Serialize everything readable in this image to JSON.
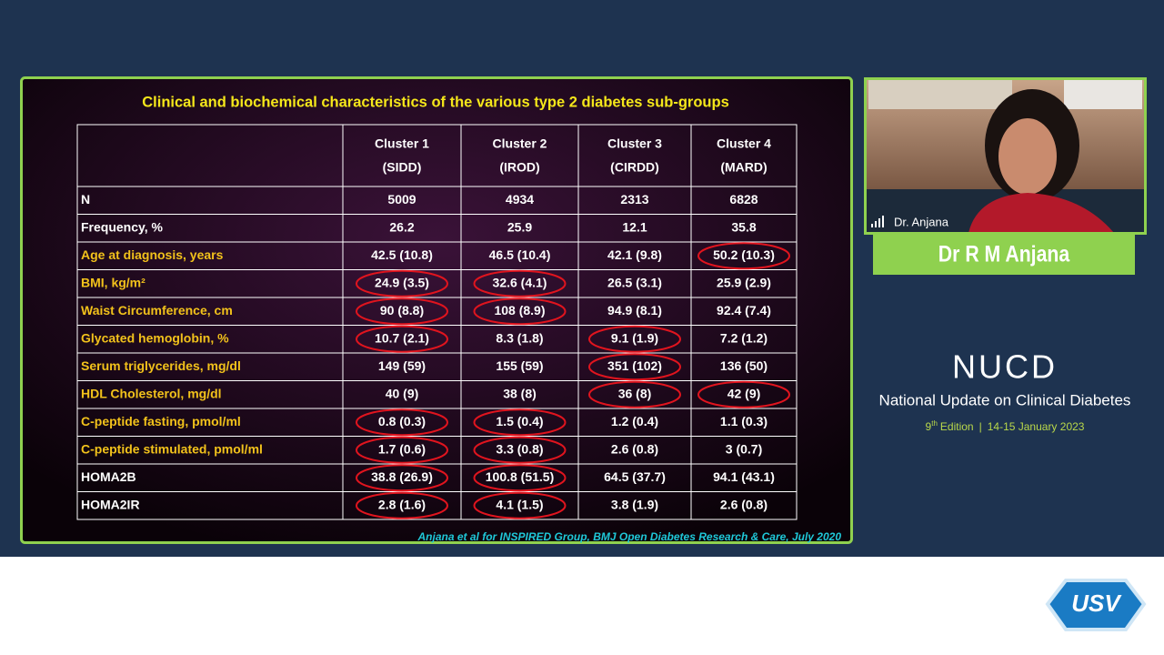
{
  "slide": {
    "title": "Clinical and biochemical characteristics of the various type 2 diabetes sub-groups",
    "table": {
      "columns": [
        {
          "name": "Cluster 1",
          "abbr": "(SIDD)"
        },
        {
          "name": "Cluster 2",
          "abbr": "(IROD)"
        },
        {
          "name": "Cluster 3",
          "abbr": "(CIRDD)"
        },
        {
          "name": "Cluster 4",
          "abbr": "(MARD)"
        }
      ],
      "rows": [
        {
          "label": "N",
          "color": "#ffffff",
          "values": [
            "5009",
            "4934",
            "2313",
            "6828"
          ]
        },
        {
          "label": "Frequency, %",
          "color": "#ffffff",
          "values": [
            "26.2",
            "25.9",
            "12.1",
            "35.8"
          ]
        },
        {
          "label": "Age at diagnosis, years",
          "color": "#f2c21b",
          "values": [
            "42.5 (10.8)",
            "46.5 (10.4)",
            "42.1 (9.8)",
            "50.2 (10.3)"
          ]
        },
        {
          "label": "BMI, kg/m²",
          "color": "#f2c21b",
          "values": [
            "24.9 (3.5)",
            "32.6 (4.1)",
            "26.5 (3.1)",
            "25.9 (2.9)"
          ]
        },
        {
          "label": "Waist Circumference, cm",
          "color": "#f2c21b",
          "values": [
            "90 (8.8)",
            "108 (8.9)",
            "94.9 (8.1)",
            "92.4 (7.4)"
          ]
        },
        {
          "label": "Glycated hemoglobin, %",
          "color": "#f2c21b",
          "values": [
            "10.7 (2.1)",
            "8.3 (1.8)",
            "9.1 (1.9)",
            "7.2 (1.2)"
          ]
        },
        {
          "label": "Serum triglycerides, mg/dl",
          "color": "#f2c21b",
          "values": [
            "149 (59)",
            "155 (59)",
            "351 (102)",
            "136 (50)"
          ]
        },
        {
          "label": "HDL Cholesterol, mg/dl",
          "color": "#f2c21b",
          "values": [
            "40 (9)",
            "38 (8)",
            "36 (8)",
            "42 (9)"
          ]
        },
        {
          "label": "C-peptide fasting, pmol/ml",
          "color": "#f2c21b",
          "values": [
            "0.8 (0.3)",
            "1.5 (0.4)",
            "1.2 (0.4)",
            "1.1 (0.3)"
          ]
        },
        {
          "label": "C-peptide stimulated, pmol/ml",
          "color": "#f2c21b",
          "values": [
            "1.7 (0.6)",
            "3.3 (0.8)",
            "2.6 (0.8)",
            "3 (0.7)"
          ]
        },
        {
          "label": "HOMA2B",
          "color": "#ffffff",
          "values": [
            "38.8 (26.9)",
            "100.8 (51.5)",
            "64.5 (37.7)",
            "94.1 (43.1)"
          ]
        },
        {
          "label": "HOMA2IR",
          "color": "#ffffff",
          "values": [
            "2.8 (1.6)",
            "4.1 (1.5)",
            "3.8 (1.9)",
            "2.6 (0.8)"
          ]
        }
      ]
    },
    "citation": "Anjana et al for INSPIRED Group, BMJ  Open Diabetes Research & Care, July 2020"
  },
  "speaker": {
    "video_label": "Dr. Anjana",
    "banner": "Dr  R M Anjana"
  },
  "event": {
    "name": "NUCD",
    "subtitle": "National Update on Clinical Diabetes",
    "edition_number": "9",
    "edition_suffix": "th",
    "edition_text": "Edition",
    "separator": "|",
    "dates": "14-15 January 2023"
  },
  "logo": {
    "text": "USV"
  }
}
